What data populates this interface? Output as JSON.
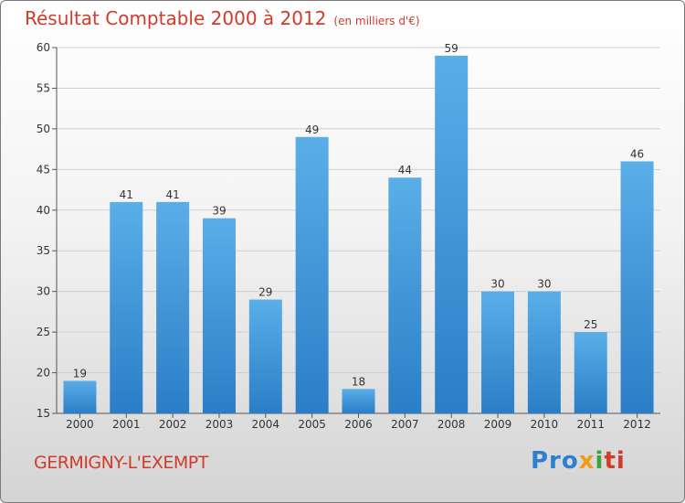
{
  "colors": {
    "bar_top": "#5aaee8",
    "bar_bottom": "#2a7ec6",
    "title": "#d23a2a",
    "axis": "#555555",
    "grid": "#cfcfcf"
  },
  "chart_data": {
    "type": "bar",
    "title": "Résultat Comptable 2000 à 2012",
    "subtitle": "(en milliers d'€)",
    "categories": [
      "2000",
      "2001",
      "2002",
      "2003",
      "2004",
      "2005",
      "2006",
      "2007",
      "2008",
      "2009",
      "2010",
      "2011",
      "2012"
    ],
    "values": [
      19,
      41,
      41,
      39,
      29,
      49,
      18,
      44,
      59,
      30,
      30,
      25,
      46
    ],
    "data_labels": [
      "19",
      "41",
      "41",
      "39",
      "29",
      "49",
      "18",
      "44",
      "59",
      "30",
      "30",
      "25",
      "46"
    ],
    "ylim": [
      15,
      60
    ],
    "yticks": [
      15,
      20,
      25,
      30,
      35,
      40,
      45,
      50,
      55,
      60
    ],
    "ytick_labels": [
      "15",
      "20",
      "25",
      "30",
      "35",
      "40",
      "45",
      "50",
      "55",
      "60"
    ],
    "grid": true,
    "xlabel": "",
    "ylabel": ""
  },
  "footer": {
    "town": "GERMIGNY-L'EXEMPT",
    "brand": {
      "part1": "Pro",
      "part2": "x",
      "part3": "i",
      "part4": "ti"
    }
  }
}
